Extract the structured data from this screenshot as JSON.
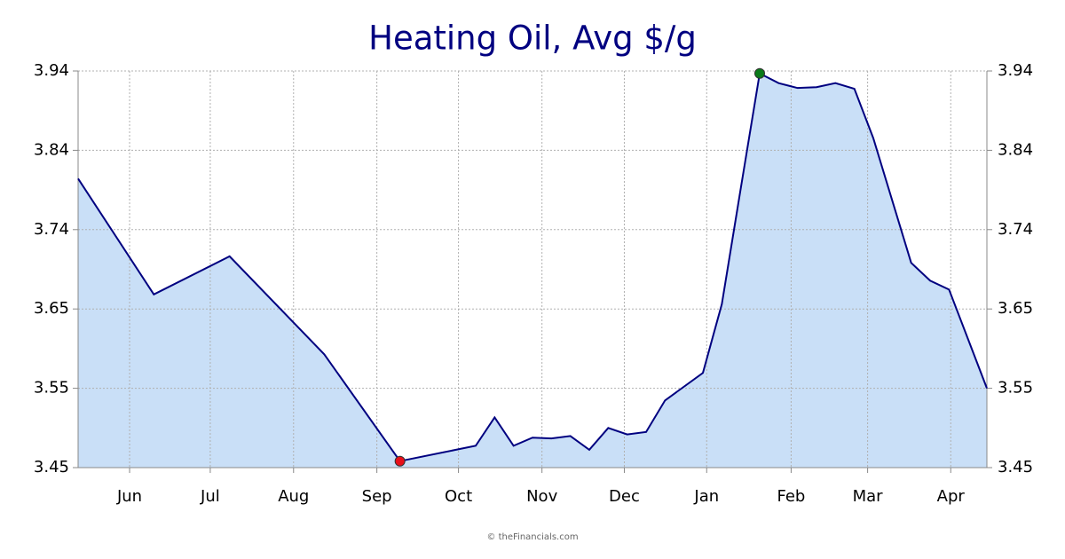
{
  "chart_data": {
    "type": "area",
    "title": "Heating Oil, Avg $/g",
    "x": [
      0,
      4,
      8,
      13,
      17,
      21,
      22,
      23,
      24,
      25,
      26,
      27,
      28,
      29,
      30,
      31,
      33,
      34,
      35,
      36,
      37,
      38,
      39,
      40,
      41,
      42,
      44,
      45,
      46,
      48
    ],
    "series": [
      {
        "name": "Heating Oil",
        "color": "#000080",
        "fill": "#c9dff7",
        "values": [
          3.807,
          3.664,
          3.711,
          3.59,
          3.458,
          3.477,
          3.512,
          3.477,
          3.487,
          3.486,
          3.489,
          3.472,
          3.499,
          3.491,
          3.494,
          3.533,
          3.567,
          3.652,
          3.795,
          3.937,
          3.925,
          3.919,
          3.92,
          3.925,
          3.918,
          3.857,
          3.703,
          3.681,
          3.67,
          3.548
        ]
      }
    ],
    "xlim": [
      0,
      48
    ],
    "xticks": [
      {
        "value": 2.72,
        "label": "Jun"
      },
      {
        "value": 6.98,
        "label": "Jul"
      },
      {
        "value": 11.38,
        "label": "Aug"
      },
      {
        "value": 15.78,
        "label": "Sep"
      },
      {
        "value": 20.09,
        "label": "Oct"
      },
      {
        "value": 24.5,
        "label": "Nov"
      },
      {
        "value": 28.85,
        "label": "Dec"
      },
      {
        "value": 33.2,
        "label": "Jan"
      },
      {
        "value": 37.66,
        "label": "Feb"
      },
      {
        "value": 41.7,
        "label": "Mar"
      },
      {
        "value": 46.09,
        "label": "Apr"
      }
    ],
    "ylim": [
      3.45,
      3.94
    ],
    "yticks": [
      3.45,
      {
        "value": 3.548,
        "label": "3.55"
      },
      {
        "value": 3.646,
        "label": "3.65"
      },
      {
        "value": 3.744,
        "label": "3.74"
      },
      {
        "value": 3.842,
        "label": "3.84"
      },
      3.94
    ],
    "grid": true,
    "min_marker_color": "#e8101a",
    "max_marker_color": "#0a7a1a",
    "footer": "© theFinancials.com"
  }
}
